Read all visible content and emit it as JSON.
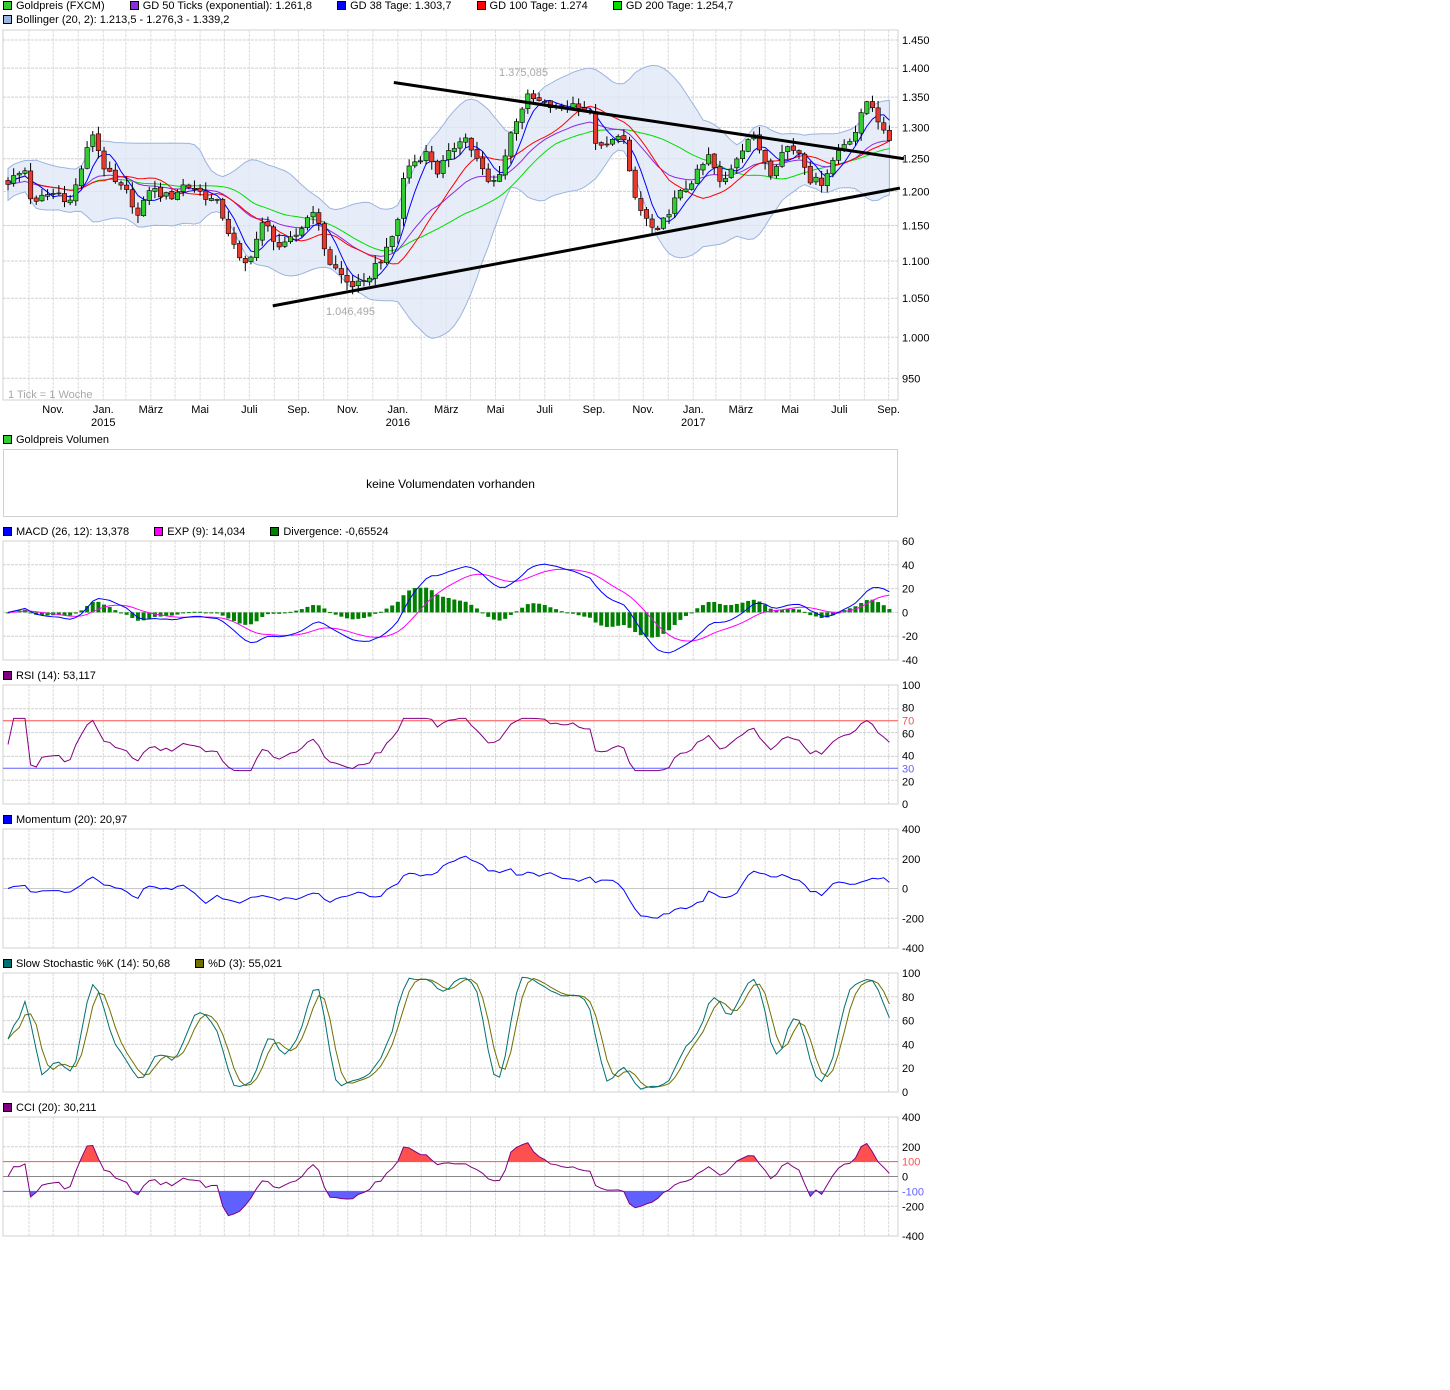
{
  "main": {
    "legend": [
      {
        "label": "Goldpreis (FXCM)",
        "color": "#33cc33"
      },
      {
        "label": "GD 50 Ticks (exponential): 1.261,8",
        "color": "#8a2be2"
      },
      {
        "label": "GD 38 Tage: 1.303,7",
        "color": "#0000ff"
      },
      {
        "label": "GD 100 Tage: 1.274",
        "color": "#ff0000"
      },
      {
        "label": "GD 200 Tage: 1.254,7",
        "color": "#00dd00"
      }
    ],
    "legend2": {
      "label": "Bollinger (20, 2): 1.213,5 - 1.276,3 - 1.339,2",
      "color": "#9bb4e0"
    },
    "tick_note": "1 Tick = 1 Woche",
    "high_label": "1.375,085",
    "low_label": "1.046,495"
  },
  "volume": {
    "legend": {
      "label": "Goldpreis Volumen",
      "color": "#33cc33"
    },
    "message": "keine Volumendaten vorhanden"
  },
  "macd": {
    "legend": [
      {
        "label": "MACD (26, 12): 13,378",
        "color": "#0000ff"
      },
      {
        "label": "EXP (9): 14,034",
        "color": "#ff00ff"
      },
      {
        "label": "Divergence: -0,65524",
        "color": "#008000"
      }
    ]
  },
  "rsi": {
    "legend": [
      {
        "label": "RSI (14): 53,117",
        "color": "#800080"
      }
    ]
  },
  "momentum": {
    "legend": [
      {
        "label": "Momentum (20): 20,97",
        "color": "#0000ff"
      }
    ]
  },
  "stoch": {
    "legend": [
      {
        "label": "Slow Stochastic %K (14): 50,68",
        "color": "#007070"
      },
      {
        "label": "%D (3): 55,021",
        "color": "#707000"
      }
    ]
  },
  "cci": {
    "legend": [
      {
        "label": "CCI (20): 30,211",
        "color": "#800080"
      }
    ]
  },
  "chart_data": {
    "type": "candlestick",
    "price_scale": "log",
    "grid": true,
    "x_ticks": [
      {
        "label": "Nov.",
        "year": ""
      },
      {
        "label": "Jan.",
        "year": "2015"
      },
      {
        "label": "März",
        "year": ""
      },
      {
        "label": "Mai",
        "year": ""
      },
      {
        "label": "Juli",
        "year": ""
      },
      {
        "label": "Sep.",
        "year": ""
      },
      {
        "label": "Nov.",
        "year": ""
      },
      {
        "label": "Jan.",
        "year": "2016"
      },
      {
        "label": "März",
        "year": ""
      },
      {
        "label": "Mai",
        "year": ""
      },
      {
        "label": "Juli",
        "year": ""
      },
      {
        "label": "Sep.",
        "year": ""
      },
      {
        "label": "Nov.",
        "year": ""
      },
      {
        "label": "Jan.",
        "year": "2017"
      },
      {
        "label": "März",
        "year": ""
      },
      {
        "label": "Mai",
        "year": ""
      },
      {
        "label": "Juli",
        "year": ""
      },
      {
        "label": "Sep.",
        "year": ""
      }
    ],
    "y_ticks": [
      {
        "value": 1450,
        "label": "1.450"
      },
      {
        "value": 1400,
        "label": "1.400"
      },
      {
        "value": 1350,
        "label": "1.350"
      },
      {
        "value": 1300,
        "label": "1.300"
      },
      {
        "value": 1250,
        "label": "1.250"
      },
      {
        "value": 1200,
        "label": "1.200"
      },
      {
        "value": 1150,
        "label": "1.150"
      },
      {
        "value": 1100,
        "label": "1.100"
      },
      {
        "value": 1050,
        "label": "1.050"
      },
      {
        "value": 1000,
        "label": "1.000"
      },
      {
        "value": 950,
        "label": "950"
      }
    ],
    "ylim": [
      930,
      1480
    ],
    "weekly_close_keypoints": [
      [
        "2014-10-06",
        1215
      ],
      [
        "2014-10-27",
        1232
      ],
      [
        "2014-11-06",
        1175
      ],
      [
        "2014-11-20",
        1195
      ],
      [
        "2014-12-09",
        1196
      ],
      [
        "2014-12-23",
        1185
      ],
      [
        "2015-01-19",
        1290
      ],
      [
        "2015-02-03",
        1234
      ],
      [
        "2015-02-17",
        1210
      ],
      [
        "2015-03-05",
        1195
      ],
      [
        "2015-03-17",
        1160
      ],
      [
        "2015-03-30",
        1205
      ],
      [
        "2015-04-24",
        1190
      ],
      [
        "2015-05-12",
        1210
      ],
      [
        "2015-05-25",
        1205
      ],
      [
        "2015-06-24",
        1180
      ],
      [
        "2015-07-19",
        1100
      ],
      [
        "2015-07-28",
        1095
      ],
      [
        "2015-08-19",
        1155
      ],
      [
        "2015-09-10",
        1115
      ],
      [
        "2015-10-01",
        1140
      ],
      [
        "2015-10-19",
        1175
      ],
      [
        "2015-11-07",
        1100
      ],
      [
        "2015-12-01",
        1070
      ],
      [
        "2015-12-20",
        1065
      ],
      [
        "2016-01-01",
        1090
      ],
      [
        "2016-01-20",
        1115
      ],
      [
        "2016-02-01",
        1160
      ],
      [
        "2016-02-10",
        1235
      ],
      [
        "2016-03-09",
        1260
      ],
      [
        "2016-03-21",
        1230
      ],
      [
        "2016-04-22",
        1290
      ],
      [
        "2016-05-26",
        1206
      ],
      [
        "2016-06-10",
        1240
      ],
      [
        "2016-06-22",
        1300
      ],
      [
        "2016-07-10",
        1350
      ],
      [
        "2016-08-16",
        1330
      ],
      [
        "2016-09-10",
        1340
      ],
      [
        "2016-09-28",
        1320
      ],
      [
        "2016-10-05",
        1262
      ],
      [
        "2016-10-23",
        1275
      ],
      [
        "2016-11-04",
        1300
      ],
      [
        "2016-11-14",
        1225
      ],
      [
        "2016-11-23",
        1180
      ],
      [
        "2016-12-18",
        1135
      ],
      [
        "2017-01-05",
        1180
      ],
      [
        "2017-02-05",
        1225
      ],
      [
        "2017-02-21",
        1255
      ],
      [
        "2017-03-08",
        1205
      ],
      [
        "2017-03-25",
        1250
      ],
      [
        "2017-04-14",
        1290
      ],
      [
        "2017-05-08",
        1230
      ],
      [
        "2017-05-27",
        1270
      ],
      [
        "2017-06-14",
        1260
      ],
      [
        "2017-06-27",
        1215
      ],
      [
        "2017-07-10",
        1215
      ],
      [
        "2017-08-03",
        1270
      ],
      [
        "2017-08-20",
        1290
      ],
      [
        "2017-09-06",
        1350
      ],
      [
        "2017-09-15",
        1325
      ],
      [
        "2017-09-24",
        1290
      ],
      [
        "2017-10-03",
        1280
      ]
    ],
    "trendlines": [
      {
        "from": [
          "2016-01-27",
          1375
        ],
        "to": [
          "2017-10-20",
          1250
        ]
      },
      {
        "from": [
          "2015-08-30",
          1040
        ],
        "to": [
          "2017-10-15",
          1205
        ]
      }
    ],
    "colors": {
      "up": "#33cc33",
      "down": "#e8392f",
      "band_fill": "#dde7f7",
      "band_line": "#9bb4e0"
    },
    "panels": {
      "macd": {
        "ylim": [
          -40,
          60
        ],
        "ticks": [
          {
            "value": 60,
            "label": "60"
          },
          {
            "value": 40,
            "label": "40"
          },
          {
            "value": 20,
            "label": "20"
          },
          {
            "value": 0,
            "label": "0"
          },
          {
            "value": -20,
            "label": "-20"
          },
          {
            "value": -40,
            "label": "-40"
          }
        ]
      },
      "rsi": {
        "ylim": [
          0,
          100
        ],
        "ticks": [
          {
            "value": 100,
            "label": "100"
          },
          {
            "value": 80,
            "label": "80"
          },
          {
            "value": 70,
            "label": "70",
            "color": "#ff5050"
          },
          {
            "value": 60,
            "label": "60"
          },
          {
            "value": 40,
            "label": "40"
          },
          {
            "value": 30,
            "label": "30",
            "color": "#6060ff"
          },
          {
            "value": 20,
            "label": "20"
          },
          {
            "value": 0,
            "label": "0"
          }
        ]
      },
      "momentum": {
        "ylim": [
          -400,
          400
        ],
        "ticks": [
          {
            "value": 400,
            "label": "400"
          },
          {
            "value": 200,
            "label": "200"
          },
          {
            "value": 0,
            "label": "0"
          },
          {
            "value": -200,
            "label": "-200"
          },
          {
            "value": -400,
            "label": "-400"
          }
        ]
      },
      "stoch": {
        "ylim": [
          0,
          100
        ],
        "ticks": [
          {
            "value": 100,
            "label": "100"
          },
          {
            "value": 80,
            "label": "80"
          },
          {
            "value": 60,
            "label": "60"
          },
          {
            "value": 40,
            "label": "40"
          },
          {
            "value": 20,
            "label": "20"
          },
          {
            "value": 0,
            "label": "0"
          }
        ]
      },
      "cci": {
        "ylim": [
          -400,
          400
        ],
        "ticks": [
          {
            "value": 400,
            "label": "400"
          },
          {
            "value": 200,
            "label": "200"
          },
          {
            "value": 100,
            "label": "100",
            "color": "#ff5050"
          },
          {
            "value": 0,
            "label": "0"
          },
          {
            "value": -100,
            "label": "-100",
            "color": "#6060ff"
          },
          {
            "value": -200,
            "label": "-200"
          },
          {
            "value": -400,
            "label": "-400"
          }
        ]
      }
    }
  }
}
